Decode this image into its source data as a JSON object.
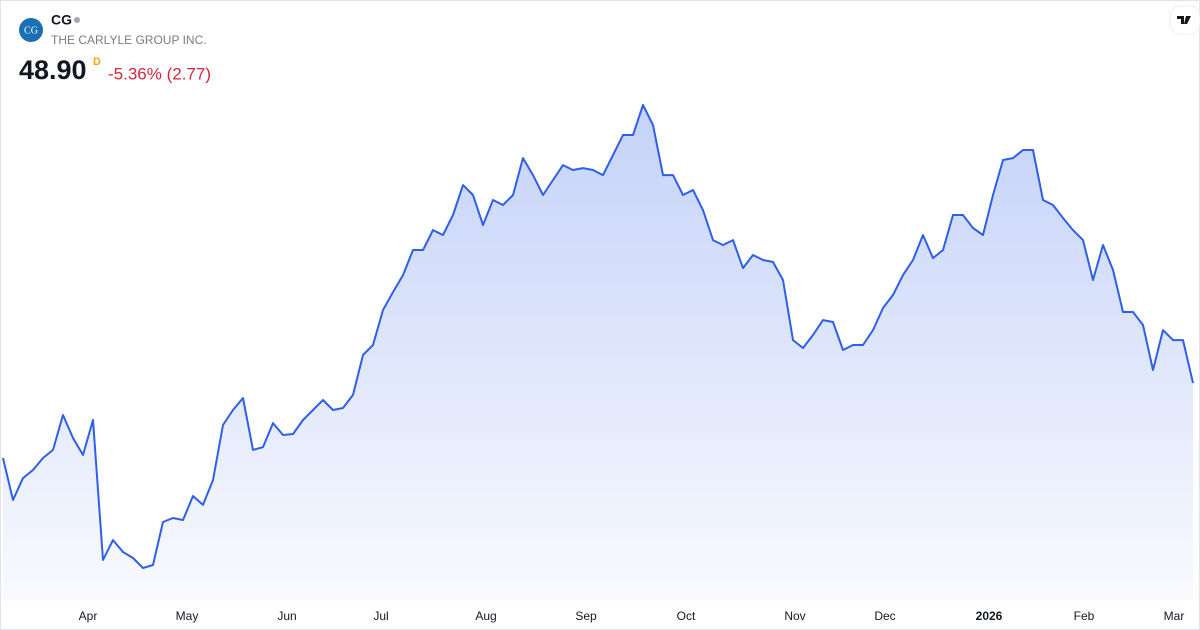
{
  "header": {
    "symbol": "CG",
    "logo_text": "CG",
    "company": "THE CARLYLE GROUP INC.",
    "price": "48.90",
    "interval": "D",
    "change": "-5.36% (2.77)"
  },
  "chart_data": {
    "type": "area",
    "color": "#2f5fe8",
    "values": [
      43.43,
      40.37,
      41.97,
      42.56,
      43.43,
      44.02,
      46.57,
      44.89,
      43.65,
      46.2,
      36.0,
      37.45,
      36.58,
      36.14,
      35.41,
      35.63,
      38.77,
      39.06,
      38.91,
      40.66,
      40.01,
      41.83,
      45.84,
      46.93,
      47.81,
      44.02,
      44.23,
      45.98,
      45.11,
      45.18,
      46.2,
      46.93,
      47.66,
      46.93,
      47.08,
      48.03,
      50.94,
      51.67,
      54.22,
      55.53,
      56.77,
      58.6,
      58.6,
      60.05,
      59.69,
      61.15,
      63.33,
      62.61,
      60.42,
      62.24,
      61.88,
      62.61,
      65.3,
      64.06,
      62.61,
      63.7,
      64.79,
      64.43,
      64.57,
      64.43,
      64.06,
      65.52,
      66.98,
      66.98,
      69.17,
      67.71,
      64.06,
      64.06,
      62.61,
      62.97,
      61.51,
      59.32,
      58.96,
      59.32,
      57.28,
      58.23,
      57.87,
      57.72,
      56.41,
      52.03,
      51.45,
      52.4,
      53.49,
      53.35,
      51.31,
      51.67,
      51.67,
      52.76,
      54.37,
      55.32,
      56.77,
      57.87,
      59.69,
      58.01,
      58.6,
      61.15,
      61.15,
      60.2,
      59.69,
      62.61,
      65.16,
      65.3,
      65.89,
      65.89,
      62.24,
      61.88,
      60.93,
      60.05,
      59.32,
      56.41,
      58.96,
      57.14,
      54.08,
      54.08,
      53.13,
      49.85,
      52.76,
      52.03,
      52.03,
      48.9
    ],
    "xlim": [
      0,
      119
    ],
    "ylim": [
      33.08,
      72.45
    ],
    "xticks": [
      {
        "value": 8.5,
        "label": "Apr"
      },
      {
        "value": 18.4,
        "label": "May"
      },
      {
        "value": 28.4,
        "label": "Jun"
      },
      {
        "value": 37.8,
        "label": "Jul"
      },
      {
        "value": 48.3,
        "label": "Aug"
      },
      {
        "value": 58.3,
        "label": "Sep"
      },
      {
        "value": 68.3,
        "label": "Oct"
      },
      {
        "value": 79.2,
        "label": "Nov"
      },
      {
        "value": 88.2,
        "label": "Dec"
      },
      {
        "value": 98.6,
        "label": "2026"
      },
      {
        "value": 108.1,
        "label": "Feb"
      },
      {
        "value": 117.1,
        "label": "Mar"
      }
    ]
  }
}
